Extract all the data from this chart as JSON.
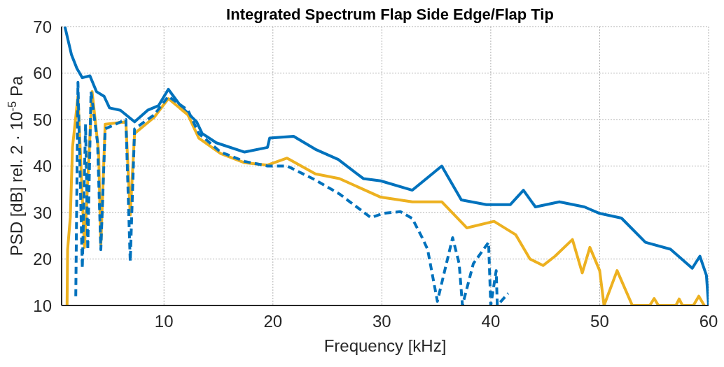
{
  "chart_data": {
    "type": "line",
    "title": "Integrated Spectrum Flap Side Edge/Flap Tip",
    "xlabel": "Frequency [kHz]",
    "ylabel": "PSD [dB] rel. 2 · 10$^{-5}$ Pa",
    "xlim": [
      0.6,
      60
    ],
    "xticks": [
      10,
      20,
      30,
      40,
      50,
      60
    ],
    "ylim": [
      10,
      70
    ],
    "yticks": [
      10,
      20,
      30,
      40,
      50,
      60,
      70
    ],
    "grid": true,
    "marker": "none",
    "series": [
      {
        "color": "#0072bd",
        "line_style": "solid",
        "x": [
          0.9,
          1.5,
          2.0,
          2.5,
          3.2,
          3.8,
          4.5,
          5.0,
          6.0,
          7.3,
          8.5,
          9.5,
          10.4,
          11.5,
          13.0,
          13.5,
          14.8,
          17.4,
          19.5,
          19.7,
          21.9,
          23.9,
          26.0,
          28.3,
          29.9,
          32.8,
          35.5,
          37.3,
          39.6,
          41.8,
          43.0,
          44.1,
          46.3,
          48.6,
          50.0,
          52.0,
          54.2,
          56.5,
          58.5,
          59.2,
          59.8,
          60.0
        ],
        "values": [
          70,
          64,
          61,
          59,
          59.4,
          56,
          55,
          52.5,
          52,
          49.5,
          52,
          53,
          56.5,
          53,
          49.5,
          47,
          45,
          43,
          44,
          46,
          46.4,
          43.6,
          41.4,
          37.3,
          36.8,
          34.8,
          40,
          32.7,
          31.7,
          31.7,
          34.8,
          31.2,
          32.3,
          31.2,
          29.8,
          28.8,
          23.6,
          22.1,
          18,
          20.6,
          16.5,
          10
        ]
      },
      {
        "color": "#edb120",
        "line_style": "solid",
        "x": [
          1.1,
          1.15,
          1.4,
          1.6,
          2.1,
          2.7,
          3.4,
          4.0,
          4.2,
          4.6,
          6.5,
          6.9,
          7.3,
          9.1,
          10.4,
          12.2,
          13.2,
          15.2,
          17.4,
          19.5,
          21.3,
          23.9,
          26.1,
          29.9,
          32.8,
          35.5,
          37.8,
          40.3,
          42.3,
          43.6,
          44.8,
          45.9,
          47.5,
          48.4,
          49.1,
          50.0,
          50.4,
          51.6,
          53.0,
          54.6,
          55.0,
          55.4,
          57.0,
          57.3,
          57.6,
          58.6,
          59.1,
          59.6
        ],
        "values": [
          10,
          22,
          29,
          44,
          55,
          22.5,
          56,
          43,
          23,
          49,
          49.5,
          29.5,
          47,
          50.5,
          54.5,
          51,
          46,
          42.7,
          40.7,
          40.2,
          41.7,
          38.3,
          37.3,
          33.3,
          32.3,
          32.3,
          26.7,
          28.1,
          25.2,
          20,
          18.6,
          20.6,
          24.2,
          17,
          22.5,
          17.5,
          10,
          17.5,
          10,
          10,
          11.5,
          10,
          10,
          11.4,
          10,
          10,
          12,
          10
        ]
      },
      {
        "color": "#0072bd",
        "line_style": "dashed",
        "x": [
          1.9,
          2.1,
          2.5,
          2.8,
          3.0,
          3.3,
          3.9,
          4.2,
          4.6,
          6.5,
          6.9,
          7.3,
          9.1,
          10.4,
          12.2,
          13.2,
          15.2,
          17.4,
          19.5,
          21.3,
          23.9,
          26.1,
          29.0,
          30.1,
          31.7,
          32.8,
          33.7,
          34.2,
          35.1,
          36.5,
          37.1,
          37.4,
          38.4,
          39.8,
          40.0,
          40.5,
          40.6,
          41.6
        ],
        "values": [
          12,
          58,
          18,
          49,
          22,
          56,
          45,
          22,
          48,
          50,
          19.5,
          48,
          51,
          55,
          52,
          47,
          43,
          41,
          40,
          40,
          37,
          34,
          28.9,
          29.8,
          30.2,
          28.7,
          24.6,
          22.1,
          10.9,
          24.6,
          19,
          10,
          19,
          23.6,
          10,
          17.5,
          10,
          12.6
        ]
      }
    ]
  }
}
